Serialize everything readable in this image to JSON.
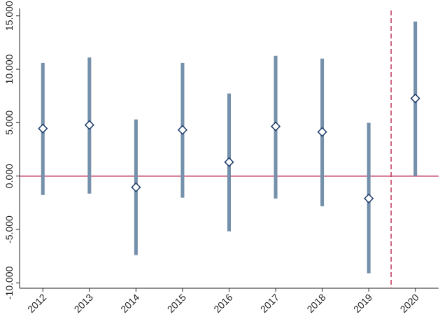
{
  "chart_data": {
    "type": "errorbar",
    "categories": [
      "2012",
      "2013",
      "2014",
      "2015",
      "2016",
      "2017",
      "2018",
      "2019",
      "2020"
    ],
    "values": [
      4.45,
      4.78,
      -1.05,
      4.32,
      1.31,
      4.65,
      4.13,
      -2.1,
      7.27
    ],
    "ci_low": [
      -1.77,
      -1.64,
      -7.4,
      -2.03,
      -5.17,
      -2.1,
      -2.82,
      -9.1,
      0.0
    ],
    "ci_high": [
      10.6,
      11.1,
      5.3,
      10.6,
      7.73,
      11.26,
      11.0,
      4.98,
      14.47
    ],
    "color": "#7590aa",
    "marker_color": "#1c3b6b",
    "reference_line": 0,
    "reference_color": "#c0365a",
    "ylim": [
      -10.5,
      15.7
    ],
    "yticks": [
      {
        "value": -10,
        "label": "-10.000"
      },
      {
        "value": -5,
        "label": "-5.000"
      },
      {
        "value": 0,
        "label": "0.000"
      },
      {
        "value": 5,
        "label": "5.000"
      },
      {
        "value": 10,
        "label": "10.000"
      },
      {
        "value": 15,
        "label": "15.000"
      }
    ]
  }
}
